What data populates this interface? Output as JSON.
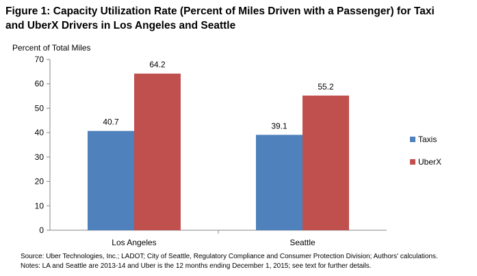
{
  "figure": {
    "title_line1": "Figure 1: Capacity Utilization Rate (Percent of Miles Driven with a Passenger) for Taxi",
    "title_line2": "and UberX Drivers in Los Angeles and Seattle",
    "source_note": "Source: Uber Technologies, Inc.; LADOT; City of Seattle, Regulatory Compliance and Consumer Protection Division; Authors' calculations.",
    "details_note": "Notes: LA and Seattle are 2013-14 and Uber is the 12 months ending December 1, 2015; see text for further details."
  },
  "chart_data": {
    "type": "bar",
    "title": "Figure 1: Capacity Utilization Rate (Percent of Miles Driven with a Passenger) for Taxi and UberX Drivers in Los Angeles and Seattle",
    "xlabel": "",
    "ylabel": "Percent of Total Miles",
    "categories": [
      "Los Angeles",
      "Seattle"
    ],
    "series": [
      {
        "name": "Taxis",
        "values": [
          40.7,
          39.1
        ],
        "color": "#4f81bd"
      },
      {
        "name": "UberX",
        "values": [
          64.2,
          55.2
        ],
        "color": "#c0504d"
      }
    ],
    "ylim": [
      0,
      70
    ],
    "yticks": [
      0,
      10,
      20,
      30,
      40,
      50,
      60,
      70
    ],
    "grid": false,
    "legend": "right"
  }
}
